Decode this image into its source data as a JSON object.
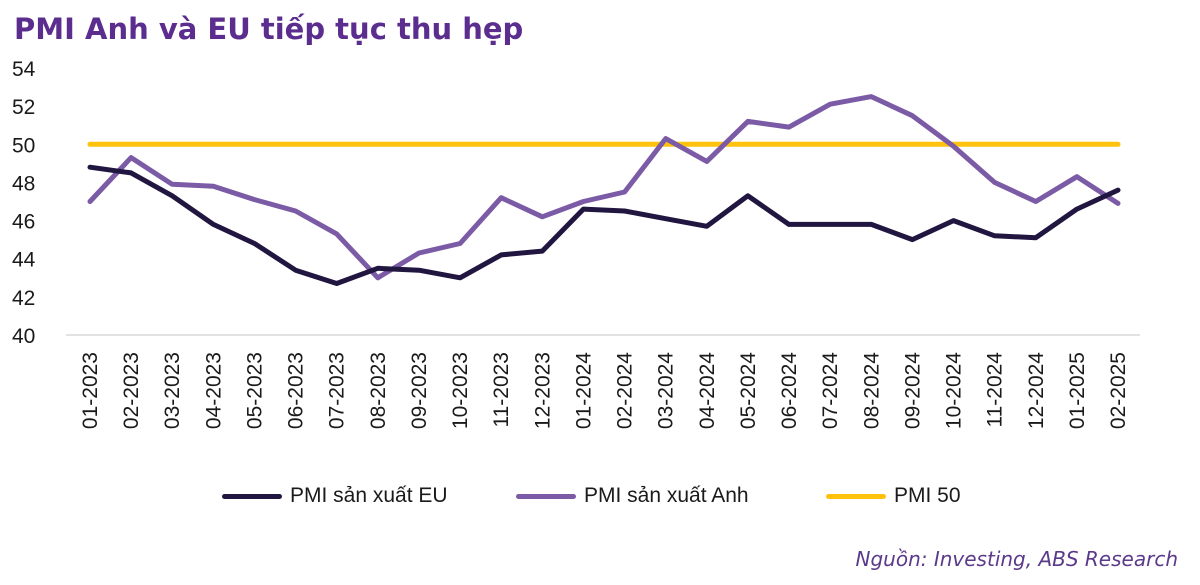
{
  "title": "PMI Anh và EU tiếp tục thu hẹp",
  "source": "Nguồn: Investing, ABS Research",
  "chart_data": {
    "type": "line",
    "title": "PMI Anh và EU tiếp tục thu hẹp",
    "xlabel": "",
    "ylabel": "",
    "ylim": [
      40,
      54
    ],
    "yticks": [
      40,
      42,
      44,
      46,
      48,
      50,
      52,
      54
    ],
    "grid": false,
    "legend": "bottom",
    "categories": [
      "01-2023",
      "02-2023",
      "03-2023",
      "04-2023",
      "05-2023",
      "06-2023",
      "07-2023",
      "08-2023",
      "09-2023",
      "10-2023",
      "11-2023",
      "12-2023",
      "01-2024",
      "02-2024",
      "03-2024",
      "04-2024",
      "05-2024",
      "06-2024",
      "07-2024",
      "08-2024",
      "09-2024",
      "10-2024",
      "11-2024",
      "12-2024",
      "01-2025",
      "02-2025"
    ],
    "series": [
      {
        "name": "PMI sản xuất EU",
        "color": "#201640",
        "values": [
          48.8,
          48.5,
          47.3,
          45.8,
          44.8,
          43.4,
          42.7,
          43.5,
          43.4,
          43.0,
          44.2,
          44.4,
          46.6,
          46.5,
          46.1,
          45.7,
          47.3,
          45.8,
          45.8,
          45.8,
          45.0,
          46.0,
          45.2,
          45.1,
          46.6,
          47.6
        ]
      },
      {
        "name": "PMI sản xuất Anh",
        "color": "#7b5ba6",
        "values": [
          47.0,
          49.3,
          47.9,
          47.8,
          47.1,
          46.5,
          45.3,
          43.0,
          44.3,
          44.8,
          47.2,
          46.2,
          47.0,
          47.5,
          50.3,
          49.1,
          51.2,
          50.9,
          52.1,
          52.5,
          51.5,
          49.9,
          48.0,
          47.0,
          48.3,
          46.9
        ]
      },
      {
        "name": "PMI 50",
        "color": "#ffc20e",
        "values": [
          50,
          50,
          50,
          50,
          50,
          50,
          50,
          50,
          50,
          50,
          50,
          50,
          50,
          50,
          50,
          50,
          50,
          50,
          50,
          50,
          50,
          50,
          50,
          50,
          50,
          50
        ]
      }
    ]
  }
}
